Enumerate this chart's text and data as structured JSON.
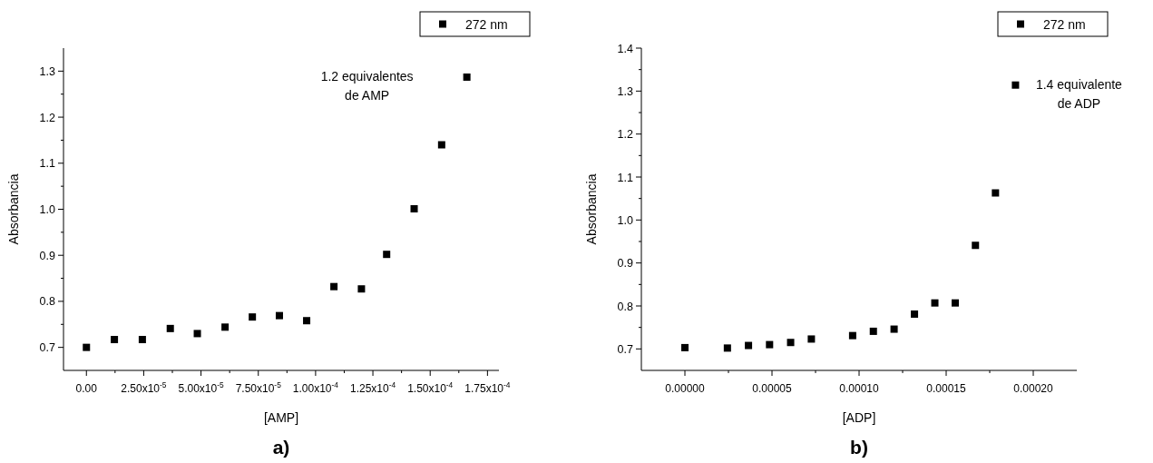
{
  "chart_data": [
    {
      "type": "scatter",
      "title": "a)",
      "xlabel": "[AMP]",
      "ylabel": "Absorbancia",
      "legend": "top right",
      "marker": "square",
      "grid": false,
      "xlim": [
        -1e-05,
        0.00018
      ],
      "ylim": [
        0.65,
        1.35
      ],
      "xticks": [
        {
          "value": 0,
          "label": "0.00"
        },
        {
          "value": 2.5e-05,
          "label": "2.50x10$^{-5}$"
        },
        {
          "value": 5e-05,
          "label": "5.00x10$^{-5}$"
        },
        {
          "value": 7.5e-05,
          "label": "7.50x10$^{-5}$"
        },
        {
          "value": 0.0001,
          "label": "1.00x10$^{-4}$"
        },
        {
          "value": 0.000125,
          "label": "1.25x10$^{-4}$"
        },
        {
          "value": 0.00015,
          "label": "1.50x10$^{-4}$"
        },
        {
          "value": 0.000175,
          "label": "1.75x10$^{-4}$"
        }
      ],
      "yticks": [
        0.7,
        0.8,
        0.9,
        {
          "value": 1,
          "label": "1.0"
        },
        1.1,
        1.2,
        1.3
      ],
      "series": [
        {
          "name": "272 nm",
          "color": "#000000",
          "x": [
            0,
            1.22e-05,
            2.44e-05,
            3.66e-05,
            4.84e-05,
            6.05e-05,
            7.24e-05,
            8.42e-05,
            9.61e-05,
            0.000108,
            0.00012,
            0.000131,
            0.000143,
            0.000155,
            0.000166
          ],
          "values": [
            0.7,
            0.717,
            0.717,
            0.741,
            0.73,
            0.744,
            0.766,
            0.769,
            0.758,
            0.832,
            0.827,
            0.902,
            1.001,
            1.14,
            1.287
          ]
        }
      ],
      "annotations": [
        "1.2 equivalentes\nde AMP"
      ]
    },
    {
      "type": "scatter",
      "title": "b)",
      "xlabel": "[ADP]",
      "ylabel": "Absorbancia",
      "legend": "top right",
      "marker": "square",
      "grid": false,
      "xlim": [
        -2.5e-05,
        0.000225
      ],
      "ylim": [
        0.65,
        1.4
      ],
      "xticks": [
        {
          "value": 0,
          "label": "0.00000"
        },
        {
          "value": 5e-05,
          "label": "0.00005"
        },
        {
          "value": 0.0001,
          "label": "0.00010"
        },
        {
          "value": 0.00015,
          "label": "0.00015"
        },
        {
          "value": 0.0002,
          "label": "0.00020"
        }
      ],
      "yticks": [
        0.7,
        0.8,
        0.9,
        {
          "value": 1,
          "label": "1.0"
        },
        1.1,
        1.2,
        1.3,
        1.4
      ],
      "series": [
        {
          "name": "272 nm",
          "color": "#000000",
          "x": [
            0,
            2.44e-05,
            3.65e-05,
            4.86e-05,
            6.07e-05,
            7.26e-05,
            9.63e-05,
            0.0001082,
            0.0001201,
            0.0001318,
            0.0001435,
            0.0001552,
            0.0001668,
            0.0001783,
            0.0001898
          ],
          "values": [
            0.703,
            0.702,
            0.708,
            0.71,
            0.715,
            0.723,
            0.731,
            0.741,
            0.746,
            0.781,
            0.807,
            0.807,
            0.941,
            1.063,
            1.314
          ]
        }
      ],
      "annotations": [
        "1.4 equivalente\nde ADP"
      ]
    }
  ]
}
